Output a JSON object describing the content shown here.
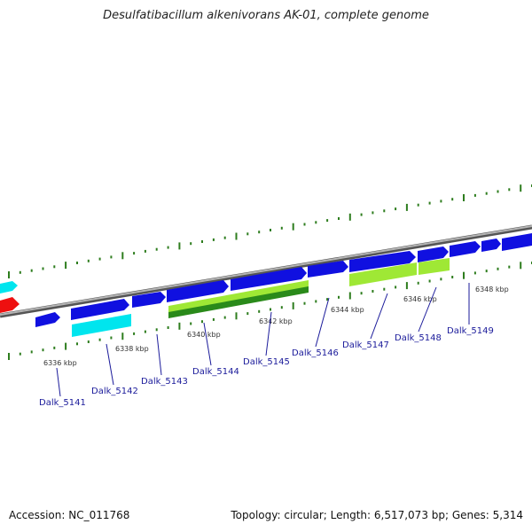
{
  "header": {
    "title": "Desulfatibacillum alkenivorans AK-01, complete genome"
  },
  "footer": {
    "accession": "Accession: NC_011768",
    "summary": "Topology: circular; Length: 6,517,073 bp; Genes: 5,314"
  },
  "colors": {
    "forward_gene": "#1010e0",
    "reverse_gene_cyan": "#00e5ee",
    "light_green_gene": "#9fe835",
    "dark_green_gene": "#2a8a1a",
    "red_gene": "#ee1010",
    "backbone": "#8a8a8a",
    "ticks": "#2e7d1e",
    "gene_label": "#1a1a9a"
  },
  "scale_labels": [
    "6336 kbp",
    "6338 kbp",
    "6340 kbp",
    "6342 kbp",
    "6344 kbp",
    "6346 kbp",
    "6348 kbp"
  ],
  "gene_labels": [
    "Dalk_5141",
    "Dalk_5142",
    "Dalk_5143",
    "Dalk_5144",
    "Dalk_5145",
    "Dalk_5146",
    "Dalk_5147",
    "Dalk_5148",
    "Dalk_5149"
  ]
}
